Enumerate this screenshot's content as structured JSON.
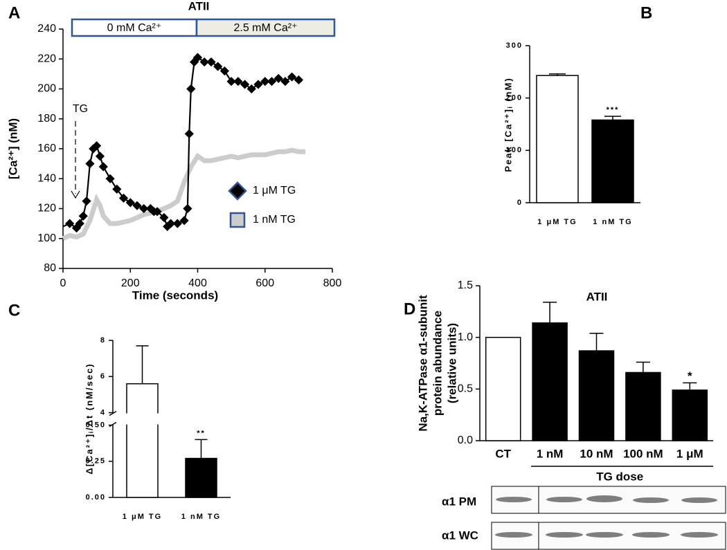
{
  "chart_data": [
    {
      "type": "line",
      "panel": "A",
      "title": "ATII",
      "conditions": [
        "0 mM Ca²⁺",
        "2.5 mM Ca²⁺"
      ],
      "x_label": "Time (seconds)",
      "y_label": "[Ca²⁺] (nM)",
      "annotation": "TG",
      "xlim": [
        0,
        800
      ],
      "xticks": [
        0,
        200,
        400,
        600,
        800
      ],
      "ylim": [
        80,
        240
      ],
      "yticks": [
        80,
        100,
        120,
        140,
        160,
        180,
        200,
        220,
        240
      ],
      "series": [
        {
          "name": "1 μM TG",
          "color": "#000000",
          "x": [
            0,
            20,
            40,
            50,
            60,
            70,
            80,
            90,
            100,
            110,
            120,
            140,
            160,
            180,
            200,
            220,
            240,
            260,
            270,
            280,
            300,
            310,
            320,
            340,
            360,
            370,
            375,
            380,
            390,
            400,
            420,
            440,
            460,
            480,
            500,
            520,
            540,
            560,
            580,
            600,
            620,
            640,
            660,
            680,
            700,
            710
          ],
          "values": [
            108,
            110,
            107,
            110,
            115,
            125,
            150,
            160,
            162,
            155,
            148,
            140,
            133,
            127,
            124,
            122,
            120,
            120,
            118,
            118,
            114,
            108,
            110,
            110,
            112,
            120,
            170,
            200,
            218,
            221,
            218,
            218,
            215,
            212,
            205,
            205,
            203,
            200,
            203,
            205,
            205,
            207,
            205,
            208,
            206,
            205
          ]
        },
        {
          "name": "1 nM TG",
          "color": "#cccccc",
          "x": [
            0,
            20,
            40,
            60,
            80,
            100,
            110,
            120,
            140,
            160,
            180,
            200,
            220,
            240,
            260,
            280,
            300,
            320,
            340,
            360,
            380,
            400,
            420,
            440,
            460,
            480,
            500,
            520,
            540,
            560,
            580,
            600,
            620,
            640,
            660,
            680,
            700,
            720
          ],
          "values": [
            100,
            102,
            101,
            103,
            112,
            126,
            122,
            115,
            110,
            110,
            111,
            112,
            114,
            116,
            117,
            118,
            120,
            122,
            125,
            138,
            148,
            155,
            152,
            152,
            153,
            154,
            155,
            154,
            155,
            156,
            156,
            156,
            157,
            158,
            158,
            159,
            158,
            158
          ]
        }
      ]
    },
    {
      "type": "bar",
      "panel": "B",
      "y_label": "Peak [Ca²⁺]ᵢ (nM)",
      "categories": [
        "1 μM TG",
        "1 nM TG"
      ],
      "values": [
        243,
        158
      ],
      "errors": [
        3,
        7
      ],
      "significance": [
        null,
        "***"
      ],
      "colors": [
        "#ffffff",
        "#000000"
      ],
      "ylim": [
        0,
        300
      ],
      "yticks": [
        0,
        100,
        200,
        300
      ]
    },
    {
      "type": "bar",
      "panel": "C",
      "y_label": "Δ[Ca²⁺]ᵢ/Δt (nM/sec)",
      "categories": [
        "1 μM TG",
        "1 nM TG"
      ],
      "values": [
        5.6,
        0.27
      ],
      "errors": [
        2.1,
        0.13
      ],
      "significance": [
        null,
        "**"
      ],
      "colors": [
        "#ffffff",
        "#000000"
      ],
      "ylim": [
        0,
        8
      ],
      "axis_break": [
        0.5,
        4
      ],
      "yticks": [
        {
          "value": 0,
          "label": "0.00"
        },
        0.25,
        {
          "value": 0.5,
          "label": "0.50"
        },
        4,
        6,
        8
      ]
    },
    {
      "type": "bar",
      "panel": "D",
      "title": "ATII",
      "y_label": [
        "Na,K-ATPase α1-subunit",
        "protein abundance",
        "(relative units)"
      ],
      "categories": [
        "CT",
        "1 nM",
        "10 nM",
        "100 nM",
        "1 μM"
      ],
      "group_label": "TG dose",
      "values": [
        1.0,
        1.14,
        0.87,
        0.66,
        0.49
      ],
      "errors": [
        0,
        0.2,
        0.17,
        0.1,
        0.07
      ],
      "significance": [
        null,
        null,
        null,
        null,
        "*"
      ],
      "colors": [
        "#ffffff",
        "#000000",
        "#000000",
        "#000000",
        "#000000"
      ],
      "ylim": [
        0,
        1.5
      ],
      "yticks": [
        {
          "value": 0,
          "label": "0.0"
        },
        0.5,
        {
          "value": 1,
          "label": "1.0"
        },
        1.5
      ],
      "blot_labels": [
        "α1 PM",
        "α1 WC"
      ]
    }
  ]
}
